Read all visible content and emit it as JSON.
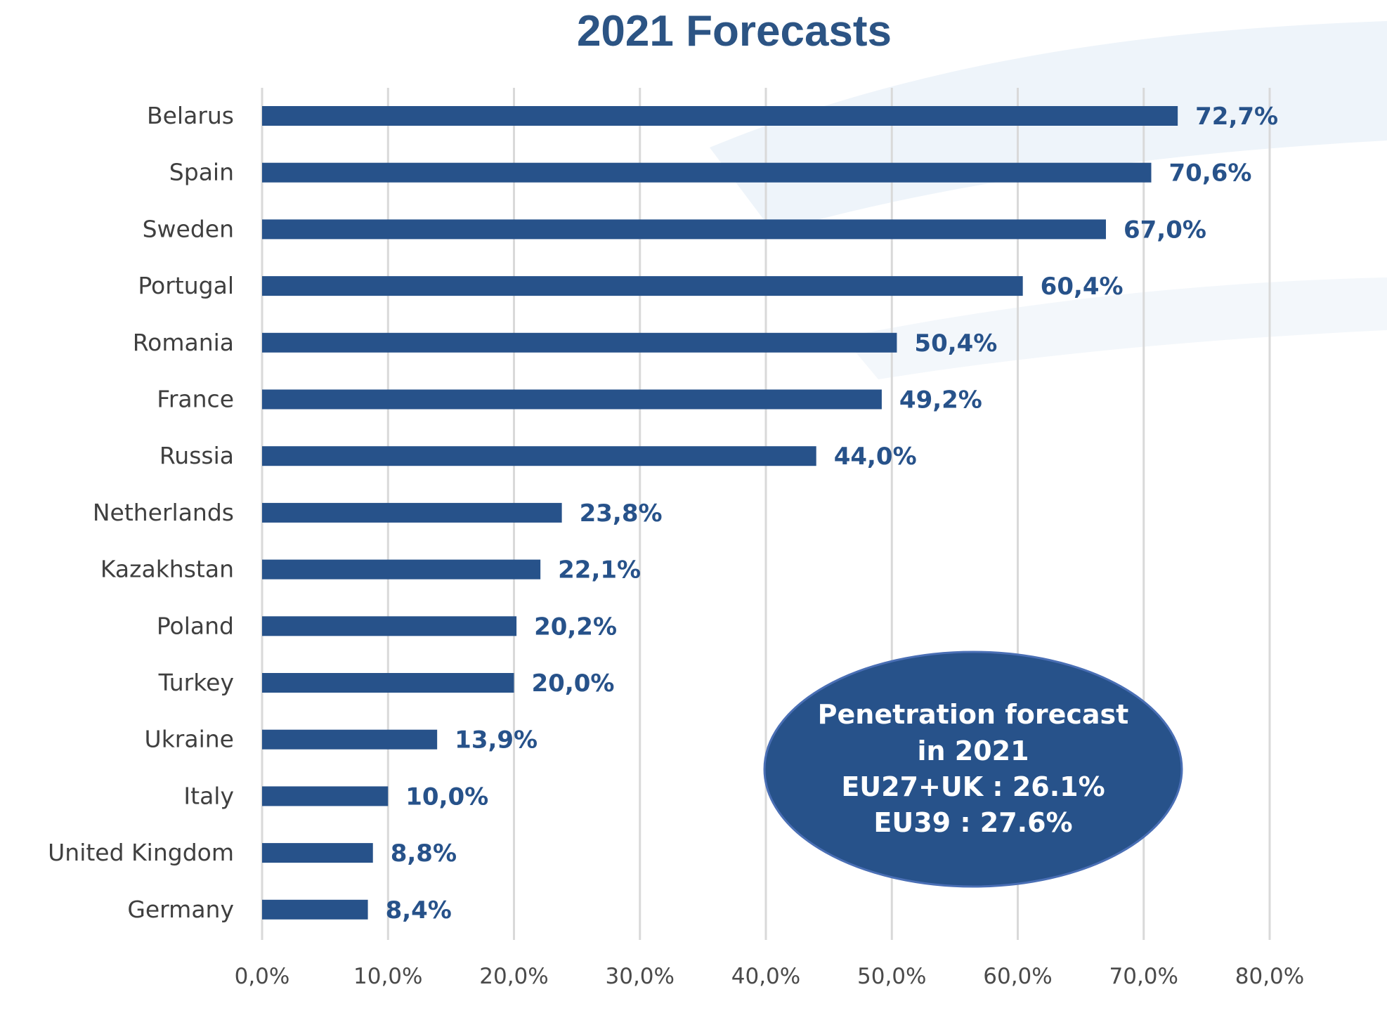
{
  "chart_data": {
    "type": "bar",
    "orientation": "horizontal",
    "title": "2021 Forecasts",
    "categories": [
      "Belarus",
      "Spain",
      "Sweden",
      "Portugal",
      "Romania",
      "France",
      "Russia",
      "Netherlands",
      "Kazakhstan",
      "Poland",
      "Turkey",
      "Ukraine",
      "Italy",
      "United Kingdom",
      "Germany"
    ],
    "values": [
      72.7,
      70.6,
      67.0,
      60.4,
      50.4,
      49.2,
      44.0,
      23.8,
      22.1,
      20.2,
      20.0,
      13.9,
      10.0,
      8.8,
      8.4
    ],
    "value_labels": [
      "72,7%",
      "70,6%",
      "67,0%",
      "60,4%",
      "50,4%",
      "49,2%",
      "44,0%",
      "23,8%",
      "22,1%",
      "20,2%",
      "20,0%",
      "13,9%",
      "10,0%",
      "8,8%",
      "8,4%"
    ],
    "xticks": [
      0,
      10,
      20,
      30,
      40,
      50,
      60,
      70,
      80
    ],
    "xtick_labels": [
      "0,0%",
      "10,0%",
      "20,0%",
      "30,0%",
      "40,0%",
      "50,0%",
      "60,0%",
      "70,0%",
      "80,0%"
    ],
    "xlim": [
      0,
      80
    ],
    "xlabel": "",
    "ylabel": "",
    "grid": "vertical",
    "legend": "none",
    "colors": {
      "bar": "#27528a",
      "label": "#27528a",
      "grid": "#d9d9d9",
      "title": "#2c5484"
    },
    "annotation": {
      "lines": [
        "Penetration forecast",
        "in 2021",
        "EU27+UK : 26.1%",
        "EU39 : 27.6%"
      ],
      "fill": "#27528a",
      "stroke": "#4a6fb5"
    }
  }
}
